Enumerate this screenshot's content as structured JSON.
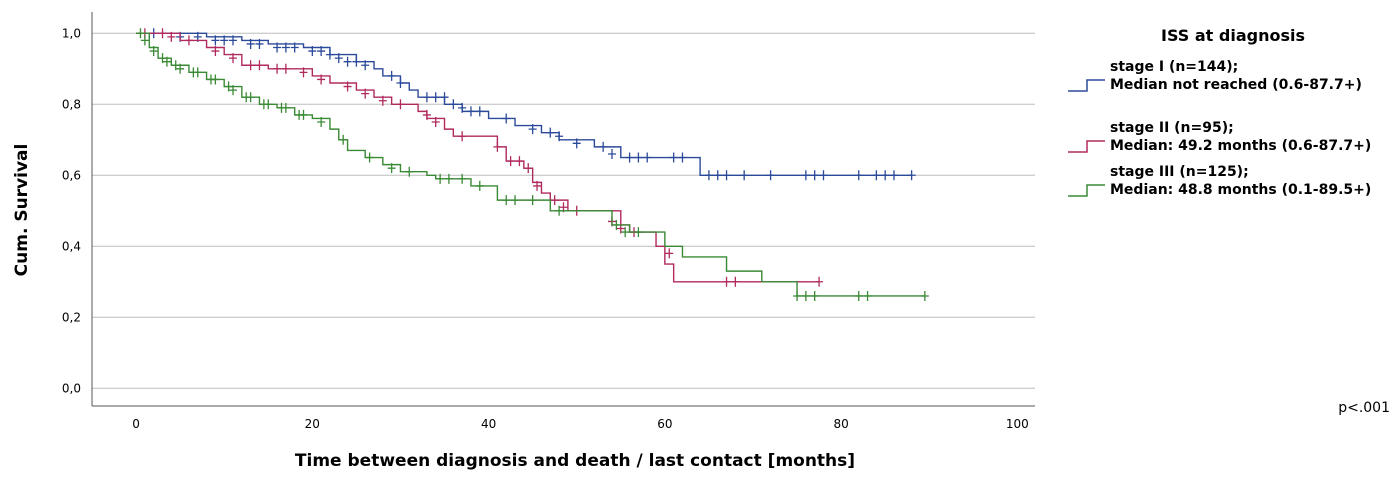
{
  "chart_data": {
    "type": "line",
    "subtype": "kaplan-meier",
    "title": "",
    "xlabel": "Time between diagnosis and death / last contact [months]",
    "ylabel": "Cum. Survival",
    "xlim": [
      -5,
      102
    ],
    "ylim": [
      -0.05,
      1.06
    ],
    "x_ticks": [
      0,
      20,
      40,
      60,
      80,
      100
    ],
    "x_tick_labels": [
      "0",
      "20",
      "40",
      "60",
      "80",
      "100"
    ],
    "y_ticks": [
      0.0,
      0.2,
      0.4,
      0.6,
      0.8,
      1.0
    ],
    "y_tick_labels": [
      "0,0",
      "0,2",
      "0,4",
      "0,6",
      "0,8",
      "1,0"
    ],
    "grid": "horizontal",
    "legend_title": "ISS at diagnosis",
    "legend_position": "right",
    "annotation": "p<.001",
    "series": [
      {
        "name": "stage I (n=144);",
        "name2": "Median not reached (0.6-87.7+)",
        "color": "#2b4a9a",
        "steps": [
          [
            0,
            1.0
          ],
          [
            8,
            0.99
          ],
          [
            12,
            0.98
          ],
          [
            15,
            0.97
          ],
          [
            19,
            0.96
          ],
          [
            22,
            0.94
          ],
          [
            25,
            0.92
          ],
          [
            27,
            0.9
          ],
          [
            28,
            0.88
          ],
          [
            30,
            0.86
          ],
          [
            31,
            0.84
          ],
          [
            32,
            0.82
          ],
          [
            35,
            0.8
          ],
          [
            37,
            0.78
          ],
          [
            40,
            0.76
          ],
          [
            43,
            0.74
          ],
          [
            46,
            0.72
          ],
          [
            48,
            0.7
          ],
          [
            52,
            0.68
          ],
          [
            55,
            0.65
          ],
          [
            64,
            0.6
          ],
          [
            88,
            0.6
          ]
        ],
        "censored": [
          [
            2,
            1.0
          ],
          [
            5,
            0.99
          ],
          [
            7,
            0.99
          ],
          [
            9,
            0.98
          ],
          [
            10,
            0.98
          ],
          [
            11,
            0.98
          ],
          [
            13,
            0.97
          ],
          [
            14,
            0.97
          ],
          [
            16,
            0.96
          ],
          [
            17,
            0.96
          ],
          [
            18,
            0.96
          ],
          [
            20,
            0.95
          ],
          [
            21,
            0.95
          ],
          [
            22,
            0.94
          ],
          [
            23,
            0.93
          ],
          [
            24,
            0.92
          ],
          [
            25,
            0.92
          ],
          [
            26,
            0.91
          ],
          [
            29,
            0.88
          ],
          [
            30,
            0.86
          ],
          [
            33,
            0.82
          ],
          [
            34,
            0.82
          ],
          [
            35,
            0.82
          ],
          [
            36,
            0.8
          ],
          [
            37,
            0.79
          ],
          [
            38,
            0.78
          ],
          [
            39,
            0.78
          ],
          [
            42,
            0.76
          ],
          [
            45,
            0.73
          ],
          [
            47,
            0.72
          ],
          [
            48,
            0.71
          ],
          [
            50,
            0.69
          ],
          [
            53,
            0.68
          ],
          [
            54,
            0.66
          ],
          [
            56,
            0.65
          ],
          [
            57,
            0.65
          ],
          [
            58,
            0.65
          ],
          [
            61,
            0.65
          ],
          [
            62,
            0.65
          ],
          [
            65,
            0.6
          ],
          [
            66,
            0.6
          ],
          [
            67,
            0.6
          ],
          [
            69,
            0.6
          ],
          [
            72,
            0.6
          ],
          [
            76,
            0.6
          ],
          [
            77,
            0.6
          ],
          [
            78,
            0.6
          ],
          [
            82,
            0.6
          ],
          [
            84,
            0.6
          ],
          [
            85,
            0.6
          ],
          [
            86,
            0.6
          ],
          [
            88,
            0.6
          ]
        ]
      },
      {
        "name": "stage II (n=95);",
        "name2": "Median: 49.2 months (0.6-87.7+)",
        "color": "#b02a5e",
        "steps": [
          [
            0,
            1.0
          ],
          [
            5,
            0.98
          ],
          [
            8,
            0.96
          ],
          [
            10,
            0.94
          ],
          [
            12,
            0.91
          ],
          [
            15,
            0.9
          ],
          [
            18,
            0.9
          ],
          [
            20,
            0.88
          ],
          [
            22,
            0.86
          ],
          [
            25,
            0.84
          ],
          [
            27,
            0.82
          ],
          [
            29,
            0.8
          ],
          [
            31,
            0.8
          ],
          [
            32,
            0.78
          ],
          [
            33,
            0.76
          ],
          [
            35,
            0.73
          ],
          [
            36,
            0.71
          ],
          [
            38,
            0.71
          ],
          [
            41,
            0.68
          ],
          [
            42,
            0.64
          ],
          [
            44,
            0.62
          ],
          [
            45,
            0.58
          ],
          [
            46,
            0.55
          ],
          [
            47,
            0.53
          ],
          [
            49,
            0.5
          ],
          [
            55,
            0.46
          ],
          [
            56,
            0.44
          ],
          [
            59,
            0.4
          ],
          [
            60,
            0.35
          ],
          [
            61,
            0.3
          ],
          [
            67,
            0.3
          ],
          [
            77.5,
            0.3
          ]
        ],
        "censored": [
          [
            1,
            1.0
          ],
          [
            3,
            1.0
          ],
          [
            4,
            0.99
          ],
          [
            6,
            0.98
          ],
          [
            9,
            0.95
          ],
          [
            11,
            0.93
          ],
          [
            13,
            0.91
          ],
          [
            14,
            0.91
          ],
          [
            16,
            0.9
          ],
          [
            17,
            0.9
          ],
          [
            19,
            0.89
          ],
          [
            21,
            0.87
          ],
          [
            24,
            0.85
          ],
          [
            26,
            0.83
          ],
          [
            28,
            0.81
          ],
          [
            30,
            0.8
          ],
          [
            33,
            0.77
          ],
          [
            34,
            0.75
          ],
          [
            37,
            0.71
          ],
          [
            41,
            0.68
          ],
          [
            42.5,
            0.64
          ],
          [
            43.5,
            0.64
          ],
          [
            44.5,
            0.62
          ],
          [
            45.5,
            0.57
          ],
          [
            47.5,
            0.53
          ],
          [
            48.5,
            0.51
          ],
          [
            50,
            0.5
          ],
          [
            54,
            0.47
          ],
          [
            55,
            0.45
          ],
          [
            56.5,
            0.44
          ],
          [
            60.5,
            0.38
          ],
          [
            67,
            0.3
          ],
          [
            68,
            0.3
          ],
          [
            77.5,
            0.3
          ]
        ]
      },
      {
        "name": "stage III (n=125);",
        "name2": "Median: 48.8 months (0.1-89.5+)",
        "color": "#3a8a35",
        "steps": [
          [
            0,
            1.0
          ],
          [
            1.5,
            0.96
          ],
          [
            2.5,
            0.93
          ],
          [
            4,
            0.91
          ],
          [
            6,
            0.89
          ],
          [
            8,
            0.87
          ],
          [
            10,
            0.85
          ],
          [
            12,
            0.82
          ],
          [
            14,
            0.8
          ],
          [
            16,
            0.79
          ],
          [
            18,
            0.77
          ],
          [
            20,
            0.76
          ],
          [
            22,
            0.73
          ],
          [
            23,
            0.7
          ],
          [
            24,
            0.67
          ],
          [
            26,
            0.65
          ],
          [
            28,
            0.63
          ],
          [
            30,
            0.61
          ],
          [
            33,
            0.6
          ],
          [
            34,
            0.59
          ],
          [
            38,
            0.57
          ],
          [
            41,
            0.53
          ],
          [
            47,
            0.5
          ],
          [
            54,
            0.46
          ],
          [
            56,
            0.44
          ],
          [
            60,
            0.4
          ],
          [
            62,
            0.37
          ],
          [
            67,
            0.33
          ],
          [
            71,
            0.3
          ],
          [
            75,
            0.26
          ],
          [
            89.5,
            0.26
          ]
        ],
        "censored": [
          [
            0.5,
            1.0
          ],
          [
            1,
            0.98
          ],
          [
            2,
            0.95
          ],
          [
            3,
            0.93
          ],
          [
            3.5,
            0.92
          ],
          [
            4.5,
            0.91
          ],
          [
            5,
            0.9
          ],
          [
            6.5,
            0.89
          ],
          [
            7,
            0.89
          ],
          [
            8.5,
            0.87
          ],
          [
            9,
            0.87
          ],
          [
            10.5,
            0.85
          ],
          [
            11,
            0.84
          ],
          [
            12.5,
            0.82
          ],
          [
            13,
            0.82
          ],
          [
            14.5,
            0.8
          ],
          [
            15,
            0.8
          ],
          [
            16.5,
            0.79
          ],
          [
            17,
            0.79
          ],
          [
            18.5,
            0.77
          ],
          [
            19,
            0.77
          ],
          [
            21,
            0.75
          ],
          [
            23.5,
            0.7
          ],
          [
            26.5,
            0.65
          ],
          [
            29,
            0.62
          ],
          [
            31,
            0.61
          ],
          [
            34.5,
            0.59
          ],
          [
            35.5,
            0.59
          ],
          [
            37,
            0.59
          ],
          [
            39,
            0.57
          ],
          [
            42,
            0.53
          ],
          [
            43,
            0.53
          ],
          [
            45,
            0.53
          ],
          [
            48,
            0.5
          ],
          [
            54.5,
            0.46
          ],
          [
            55.5,
            0.44
          ],
          [
            57,
            0.44
          ],
          [
            75,
            0.26
          ],
          [
            76,
            0.26
          ],
          [
            77,
            0.26
          ],
          [
            82,
            0.26
          ],
          [
            83,
            0.26
          ],
          [
            89.5,
            0.26
          ]
        ]
      }
    ]
  }
}
